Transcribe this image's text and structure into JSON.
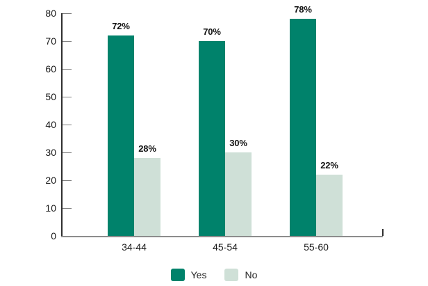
{
  "chart_data": {
    "type": "bar",
    "title": "",
    "xlabel": "",
    "ylabel": "",
    "categories": [
      "34-44",
      "45-54",
      "55-60"
    ],
    "series": [
      {
        "name": "Yes",
        "color": "#00826b",
        "values": [
          72,
          70,
          78
        ]
      },
      {
        "name": "No",
        "color": "#cfe0d7",
        "values": [
          28,
          30,
          22
        ]
      }
    ],
    "value_label_suffix": "%",
    "value_labels": {
      "Yes": [
        "72%",
        "70%",
        "78%"
      ],
      "No": [
        "28%",
        "30%",
        "22%"
      ]
    },
    "ylim": [
      0,
      80
    ],
    "yticks": [
      0,
      10,
      20,
      30,
      40,
      50,
      60,
      70,
      80
    ],
    "grid": false,
    "legend_position": "bottom",
    "legend": [
      "Yes",
      "No"
    ]
  },
  "style": {
    "yes_color": "#00826b",
    "no_color": "#cfe0d7",
    "y_axis_color": "#2e2e2e",
    "x_axis_color": "#8c8c8c",
    "tick_color": "#7f7f7f",
    "text_color": "#1a1a1a",
    "background": "#ffffff"
  }
}
